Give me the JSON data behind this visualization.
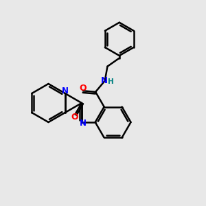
{
  "background_color": "#e8e8e8",
  "bond_color": "#000000",
  "N_color": "#0000ff",
  "O_color": "#ff0000",
  "H_color": "#008080",
  "line_width": 1.8,
  "fig_size": [
    3.0,
    3.0
  ],
  "dpi": 100,
  "xlim": [
    0,
    10
  ],
  "ylim": [
    0,
    10
  ]
}
